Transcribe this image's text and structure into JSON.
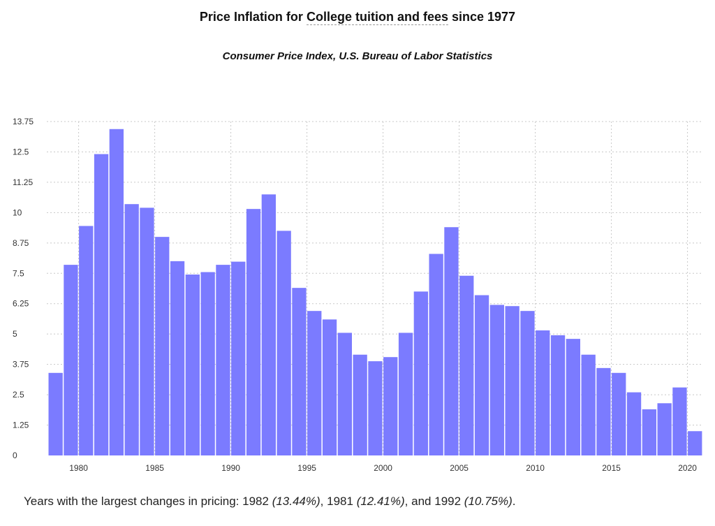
{
  "title": {
    "prefix": "Price Inflation for",
    "highlight": "College tuition and fees",
    "suffix": "since 1977"
  },
  "subtitle": "Consumer Price Index, U.S. Bureau of Labor Statistics",
  "summary": {
    "intro": "Years with the largest changes in pricing:",
    "year1": "1982",
    "value1": "(13.44%)",
    "year2": "1981",
    "value2": "(12.41%)",
    "conj": "and",
    "year3": "1992",
    "value3": "(10.75%)",
    "end": "."
  },
  "colors": {
    "bar": "#7b7bff",
    "grid": "#c8c8c8",
    "text": "#222222"
  },
  "chart_data": {
    "type": "bar",
    "title": "Price Inflation for College tuition and fees since 1977",
    "subtitle": "Consumer Price Index, U.S. Bureau of Labor Statistics",
    "xlabel": "",
    "ylabel": "",
    "ylim": [
      0,
      13.75
    ],
    "grid": true,
    "y_ticks": [
      "0",
      "1.25",
      "2.5",
      "3.75",
      "5",
      "6.25",
      "7.5",
      "8.75",
      "10",
      "11.25",
      "12.5",
      "13.75"
    ],
    "x_ticks": [
      "1980",
      "1985",
      "1990",
      "1995",
      "2000",
      "2005",
      "2010",
      "2015",
      "2020"
    ],
    "categories": [
      1978,
      1979,
      1980,
      1981,
      1982,
      1983,
      1984,
      1985,
      1986,
      1987,
      1988,
      1989,
      1990,
      1991,
      1992,
      1993,
      1994,
      1995,
      1996,
      1997,
      1998,
      1999,
      2000,
      2001,
      2002,
      2003,
      2004,
      2005,
      2006,
      2007,
      2008,
      2009,
      2010,
      2011,
      2012,
      2013,
      2014,
      2015,
      2016,
      2017,
      2018,
      2019,
      2020
    ],
    "values": [
      3.4,
      7.85,
      9.45,
      12.41,
      13.44,
      10.35,
      10.2,
      9.0,
      8.0,
      7.45,
      7.55,
      7.85,
      7.98,
      10.15,
      10.75,
      9.25,
      6.9,
      5.95,
      5.6,
      5.05,
      4.15,
      3.88,
      4.05,
      5.05,
      6.75,
      8.3,
      9.4,
      7.4,
      6.6,
      6.2,
      6.15,
      5.95,
      5.15,
      4.95,
      4.8,
      4.15,
      3.6,
      3.4,
      2.6,
      1.9,
      2.15,
      2.8,
      1.0
    ]
  }
}
